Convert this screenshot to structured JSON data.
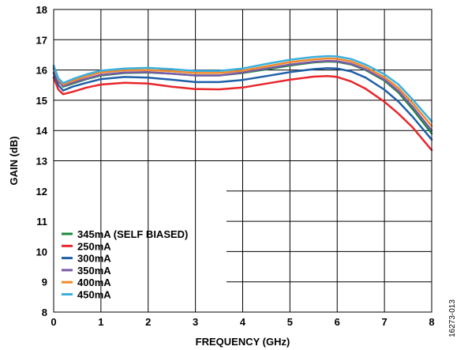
{
  "figure_id": "16273-013",
  "chart_data": {
    "type": "line",
    "title": "",
    "xlabel": "FREQUENCY (GHz)",
    "ylabel": "GAIN (dB)",
    "xlim": [
      0,
      8
    ],
    "ylim": [
      8,
      18
    ],
    "xticks": [
      "0",
      "1",
      "2",
      "3",
      "4",
      "5",
      "6",
      "7",
      "8"
    ],
    "yticks": [
      "8",
      "9",
      "10",
      "11",
      "12",
      "13",
      "14",
      "15",
      "16",
      "17",
      "18"
    ],
    "grid": true,
    "legend_position": "bottom-left",
    "x": [
      0,
      0.1,
      0.2,
      0.4,
      0.7,
      1.0,
      1.5,
      2.0,
      2.5,
      3.0,
      3.5,
      4.0,
      4.5,
      5.0,
      5.5,
      5.8,
      6.0,
      6.3,
      6.6,
      7.0,
      7.3,
      7.6,
      8.0
    ],
    "series": [
      {
        "name": "345mA (SELF BIASED)",
        "color": "#1a8a3c",
        "values": [
          16.05,
          15.65,
          15.45,
          15.55,
          15.7,
          15.82,
          15.9,
          15.92,
          15.88,
          15.82,
          15.82,
          15.9,
          16.02,
          16.15,
          16.25,
          16.28,
          16.27,
          16.18,
          16.0,
          15.65,
          15.25,
          14.7,
          13.9
        ]
      },
      {
        "name": "250mA",
        "color": "#e8262b",
        "values": [
          15.75,
          15.35,
          15.2,
          15.28,
          15.42,
          15.52,
          15.58,
          15.55,
          15.45,
          15.37,
          15.36,
          15.42,
          15.55,
          15.68,
          15.78,
          15.8,
          15.77,
          15.62,
          15.38,
          14.95,
          14.55,
          14.1,
          13.35
        ]
      },
      {
        "name": "300mA",
        "color": "#1f5fa8",
        "values": [
          15.9,
          15.5,
          15.32,
          15.45,
          15.58,
          15.7,
          15.77,
          15.75,
          15.68,
          15.6,
          15.6,
          15.67,
          15.8,
          15.93,
          16.03,
          16.06,
          16.05,
          15.95,
          15.75,
          15.35,
          14.95,
          14.45,
          13.7
        ]
      },
      {
        "name": "350mA",
        "color": "#7c5aa8",
        "values": [
          16.05,
          15.62,
          15.47,
          15.58,
          15.72,
          15.84,
          15.92,
          15.93,
          15.88,
          15.82,
          15.82,
          15.92,
          16.05,
          16.18,
          16.27,
          16.3,
          16.29,
          16.2,
          16.02,
          15.68,
          15.3,
          14.78,
          14.0
        ]
      },
      {
        "name": "400mA",
        "color": "#f08a2a",
        "values": [
          16.1,
          15.68,
          15.52,
          15.64,
          15.8,
          15.92,
          15.99,
          16.0,
          15.96,
          15.9,
          15.9,
          15.98,
          16.12,
          16.26,
          16.35,
          16.38,
          16.37,
          16.28,
          16.1,
          15.76,
          15.4,
          14.9,
          14.15
        ]
      },
      {
        "name": "450mA",
        "color": "#3ab0df",
        "values": [
          16.15,
          15.72,
          15.57,
          15.7,
          15.86,
          15.98,
          16.05,
          16.07,
          16.03,
          15.97,
          15.97,
          16.05,
          16.2,
          16.34,
          16.43,
          16.46,
          16.45,
          16.36,
          16.18,
          15.86,
          15.52,
          15.02,
          14.3
        ]
      }
    ]
  }
}
